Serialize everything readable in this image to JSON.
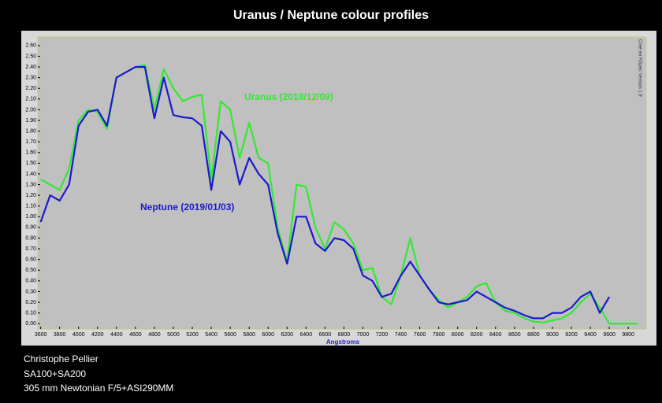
{
  "chart_data": {
    "type": "line",
    "title": "Uranus / Neptune colour profiles",
    "x_label": "Angstroms",
    "annotation": "Créé en RSpec Version 1.9",
    "credits": [
      "Christophe Pellier",
      "SA100+SA200",
      "305 mm Newtonian F/5+ASI290MM"
    ],
    "x": [
      3600,
      3700,
      3800,
      3900,
      4000,
      4100,
      4200,
      4300,
      4400,
      4500,
      4600,
      4700,
      4800,
      4900,
      5000,
      5100,
      5200,
      5300,
      5400,
      5500,
      5600,
      5700,
      5800,
      5900,
      6000,
      6100,
      6200,
      6300,
      6400,
      6500,
      6600,
      6700,
      6800,
      6900,
      7000,
      7100,
      7200,
      7300,
      7400,
      7500,
      7600,
      7700,
      7800,
      7900,
      8000,
      8100,
      8200,
      8300,
      8400,
      8500,
      8600,
      8700,
      8800,
      8900,
      9000,
      9100,
      9200,
      9300,
      9400,
      9500,
      9600,
      9800,
      9900
    ],
    "series": [
      {
        "name": "Uranus (2018/12/09)",
        "color": "#33e833",
        "values": [
          1.35,
          1.3,
          1.25,
          1.45,
          1.9,
          2.0,
          1.98,
          1.82,
          2.3,
          2.35,
          2.4,
          2.42,
          2.0,
          2.38,
          2.2,
          2.08,
          2.12,
          2.14,
          1.35,
          2.08,
          2.0,
          1.55,
          1.88,
          1.55,
          1.5,
          0.9,
          0.58,
          1.3,
          1.28,
          0.9,
          0.7,
          0.95,
          0.88,
          0.75,
          0.5,
          0.52,
          0.25,
          0.18,
          0.45,
          0.8,
          0.45,
          0.32,
          0.22,
          0.15,
          0.2,
          0.25,
          0.35,
          0.38,
          0.2,
          0.12,
          0.1,
          0.05,
          0.02,
          0.01,
          0.03,
          0.05,
          0.1,
          0.2,
          0.28,
          0.15,
          0.0,
          0.0,
          0.0
        ]
      },
      {
        "name": "Neptune (2019/01/03)",
        "color": "#1a1acc",
        "values": [
          0.95,
          1.2,
          1.15,
          1.3,
          1.85,
          1.98,
          2.0,
          1.85,
          2.3,
          2.35,
          2.4,
          2.4,
          1.92,
          2.3,
          1.95,
          1.93,
          1.92,
          1.85,
          1.25,
          1.8,
          1.7,
          1.3,
          1.55,
          1.4,
          1.3,
          0.85,
          0.56,
          1.0,
          1.0,
          0.75,
          0.68,
          0.8,
          0.78,
          0.7,
          0.45,
          0.4,
          0.25,
          0.28,
          0.45,
          0.58,
          0.45,
          0.32,
          0.2,
          0.18,
          0.2,
          0.22,
          0.3,
          0.25,
          0.2,
          0.15,
          0.12,
          0.08,
          0.05,
          0.05,
          0.1,
          0.1,
          0.15,
          0.25,
          0.3,
          0.1,
          0.25,
          null,
          null
        ]
      }
    ],
    "xlim": [
      3570,
      9990
    ],
    "ylim": [
      -0.05,
      2.68
    ],
    "xticks": [
      3600,
      3800,
      4000,
      4200,
      4400,
      4600,
      4800,
      5000,
      5200,
      5400,
      5600,
      5800,
      6000,
      6200,
      6400,
      6600,
      6800,
      7000,
      7200,
      7400,
      7600,
      7800,
      8000,
      8200,
      8400,
      8600,
      8800,
      9000,
      9200,
      9400,
      9600,
      9800
    ],
    "yticks": [
      {
        "value": 0,
        "label": "0.00"
      },
      {
        "value": 0.1,
        "label": "0.10"
      },
      {
        "value": 0.2,
        "label": "0.20"
      },
      {
        "value": 0.3,
        "label": "0.30"
      },
      {
        "value": 0.4,
        "label": "0.40"
      },
      {
        "value": 0.5,
        "label": "0.50"
      },
      {
        "value": 0.6,
        "label": "0.60"
      },
      {
        "value": 0.7,
        "label": "0.70"
      },
      {
        "value": 0.8,
        "label": "0.80"
      },
      {
        "value": 0.9,
        "label": "0.90"
      },
      {
        "value": 1,
        "label": "1.00"
      },
      {
        "value": 1.1,
        "label": "1.10"
      },
      {
        "value": 1.2,
        "label": "1.20"
      },
      {
        "value": 1.3,
        "label": "1.30"
      },
      {
        "value": 1.4,
        "label": "1.40"
      },
      {
        "value": 1.5,
        "label": "1.50"
      },
      {
        "value": 1.6,
        "label": "1.60"
      },
      {
        "value": 1.7,
        "label": "1.70"
      },
      {
        "value": 1.8,
        "label": "1.80"
      },
      {
        "value": 1.9,
        "label": "1.90"
      },
      {
        "value": 2,
        "label": "2.00"
      },
      {
        "value": 2.1,
        "label": "2.10"
      },
      {
        "value": 2.2,
        "label": "2.20"
      },
      {
        "value": 2.3,
        "label": "2.30"
      },
      {
        "value": 2.4,
        "label": "2.40"
      },
      {
        "value": 2.5,
        "label": "2.50"
      },
      {
        "value": 2.6,
        "label": "2.60"
      }
    ]
  }
}
